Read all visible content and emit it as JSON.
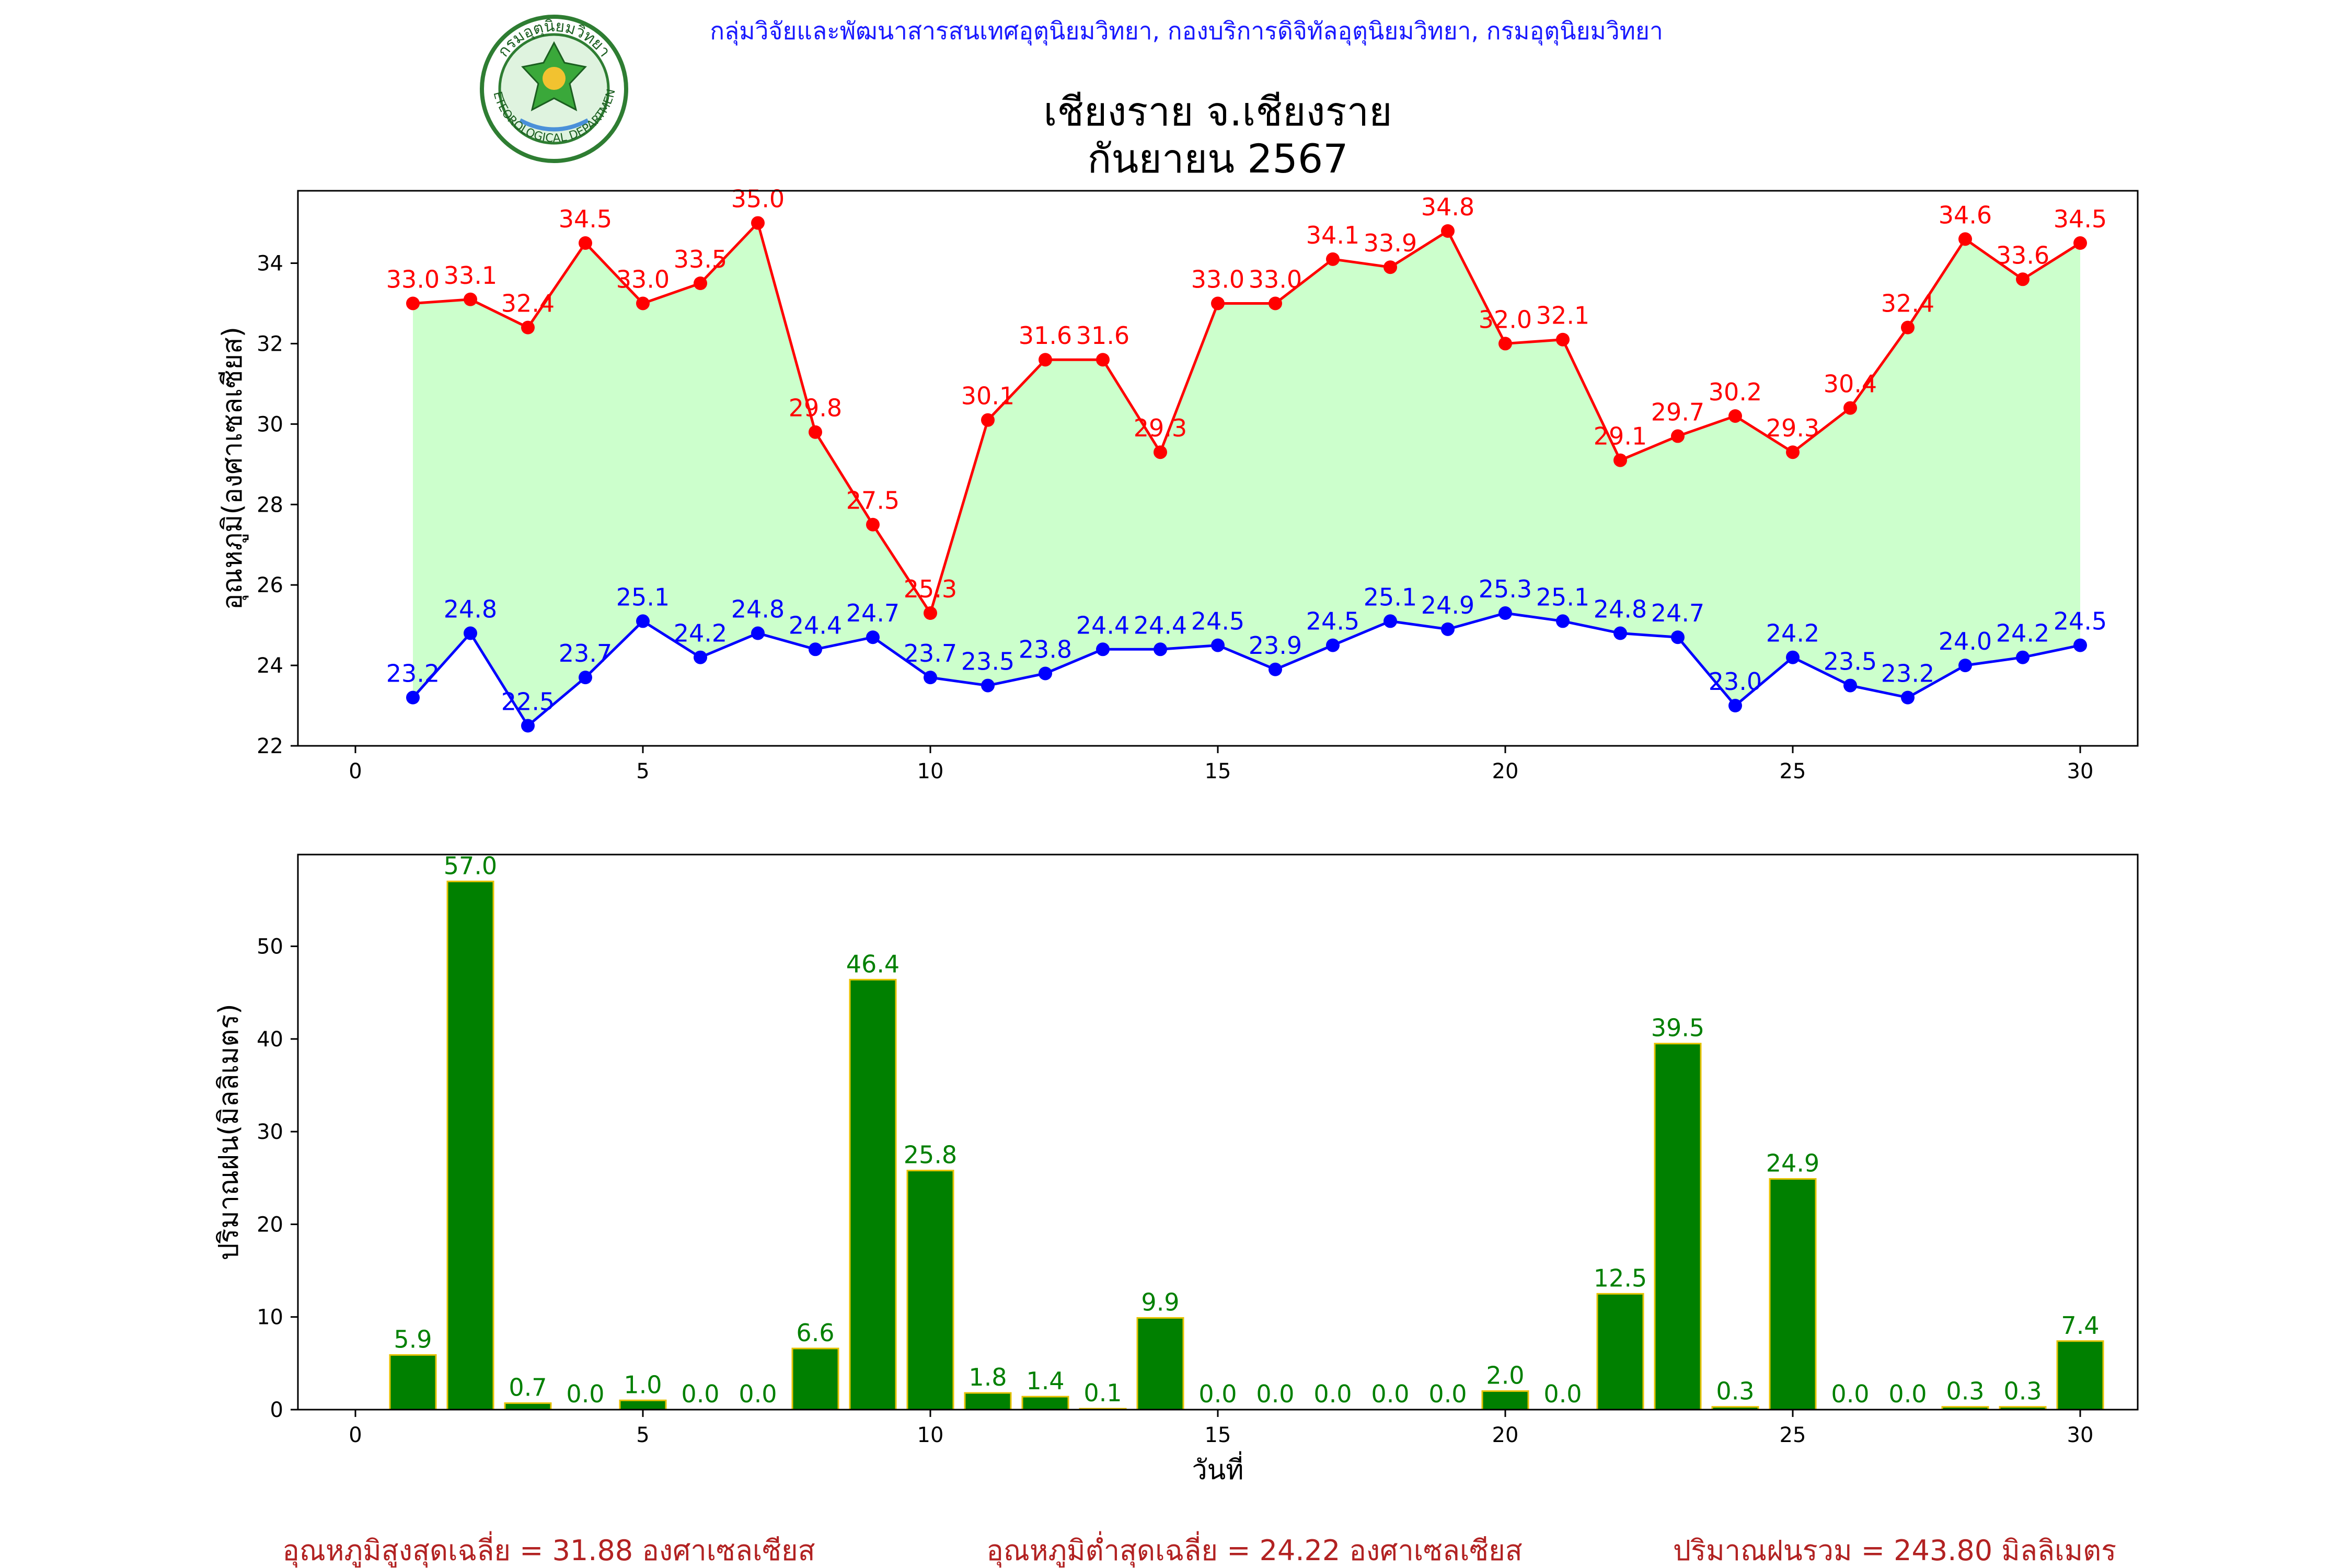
{
  "header": {
    "credit": "กลุ่มวิจัยและพัฒนาสารสนเทศอุตุนิยมวิทยา, กองบริการดิจิทัลอุตุนิยมวิทยา, กรมอุตุนิยมวิทยา",
    "title_line1": "เชียงราย จ.เชียงราย",
    "title_line2": "กันยายน 2567",
    "logo_text_top": "กรมอุตุนิยมวิทยา",
    "logo_text_bottom": "METEOROLOGICAL DEPARTMENT"
  },
  "colors": {
    "max": "#ff0000",
    "min": "#0000ff",
    "fill": "#ccffcc",
    "bar": "#008000",
    "bar_edge": "#e6c200",
    "summary": "#b22222"
  },
  "chart_data": [
    {
      "type": "line",
      "ylabel": "อุณหภูมิ(องศาเซลเซียส)",
      "xlabel": "",
      "xlim": [
        -1,
        31
      ],
      "ylim": [
        22,
        35.8
      ],
      "xticks": [
        0,
        5,
        10,
        15,
        20,
        25,
        30
      ],
      "yticks": [
        22,
        24,
        26,
        28,
        30,
        32,
        34
      ],
      "x": [
        1,
        2,
        3,
        4,
        5,
        6,
        7,
        8,
        9,
        10,
        11,
        12,
        13,
        14,
        15,
        16,
        17,
        18,
        19,
        20,
        21,
        22,
        23,
        24,
        25,
        26,
        27,
        28,
        29,
        30
      ],
      "series": [
        {
          "key": "max",
          "values": [
            33.0,
            33.1,
            32.4,
            34.5,
            33.0,
            33.5,
            35.0,
            29.8,
            27.5,
            25.3,
            30.1,
            31.6,
            31.6,
            29.3,
            33.0,
            33.0,
            34.1,
            33.9,
            34.8,
            32.0,
            32.1,
            29.1,
            29.7,
            30.2,
            29.3,
            30.4,
            32.4,
            34.6,
            33.6,
            34.5
          ]
        },
        {
          "key": "min",
          "values": [
            23.2,
            24.8,
            22.5,
            23.7,
            25.1,
            24.2,
            24.8,
            24.4,
            24.7,
            23.7,
            23.5,
            23.8,
            24.4,
            24.4,
            24.5,
            23.9,
            24.5,
            25.1,
            24.9,
            25.3,
            25.1,
            24.8,
            24.7,
            23.0,
            24.2,
            23.5,
            23.2,
            24.0,
            24.2,
            24.5
          ]
        }
      ]
    },
    {
      "type": "bar",
      "ylabel": "ปริมาณฝน(มิลลิเมตร)",
      "xlabel": "วันที่",
      "xlim": [
        -1,
        31
      ],
      "ylim": [
        0,
        59.9
      ],
      "xticks": [
        0,
        5,
        10,
        15,
        20,
        25,
        30
      ],
      "yticks": [
        0,
        10,
        20,
        30,
        40,
        50
      ],
      "x": [
        1,
        2,
        3,
        4,
        5,
        6,
        7,
        8,
        9,
        10,
        11,
        12,
        13,
        14,
        15,
        16,
        17,
        18,
        19,
        20,
        21,
        22,
        23,
        24,
        25,
        26,
        27,
        28,
        29,
        30
      ],
      "values": [
        5.9,
        57.0,
        0.7,
        0.0,
        1.0,
        0.0,
        0.0,
        6.6,
        46.4,
        25.8,
        1.8,
        1.4,
        0.1,
        9.9,
        0.0,
        0.0,
        0.0,
        0.0,
        0.0,
        2.0,
        0.0,
        12.5,
        39.5,
        0.3,
        24.9,
        0.0,
        0.0,
        0.3,
        0.3,
        7.4
      ]
    }
  ],
  "summary": {
    "avg_max": "อุณหภูมิสูงสุดเฉลี่ย = 31.88 องศาเซลเซียส",
    "avg_min": "อุณหภูมิต่ำสุดเฉลี่ย = 24.22 องศาเซลเซียส",
    "total_rain": "ปริมาณฝนรวม = 243.80 มิลลิเมตร"
  }
}
